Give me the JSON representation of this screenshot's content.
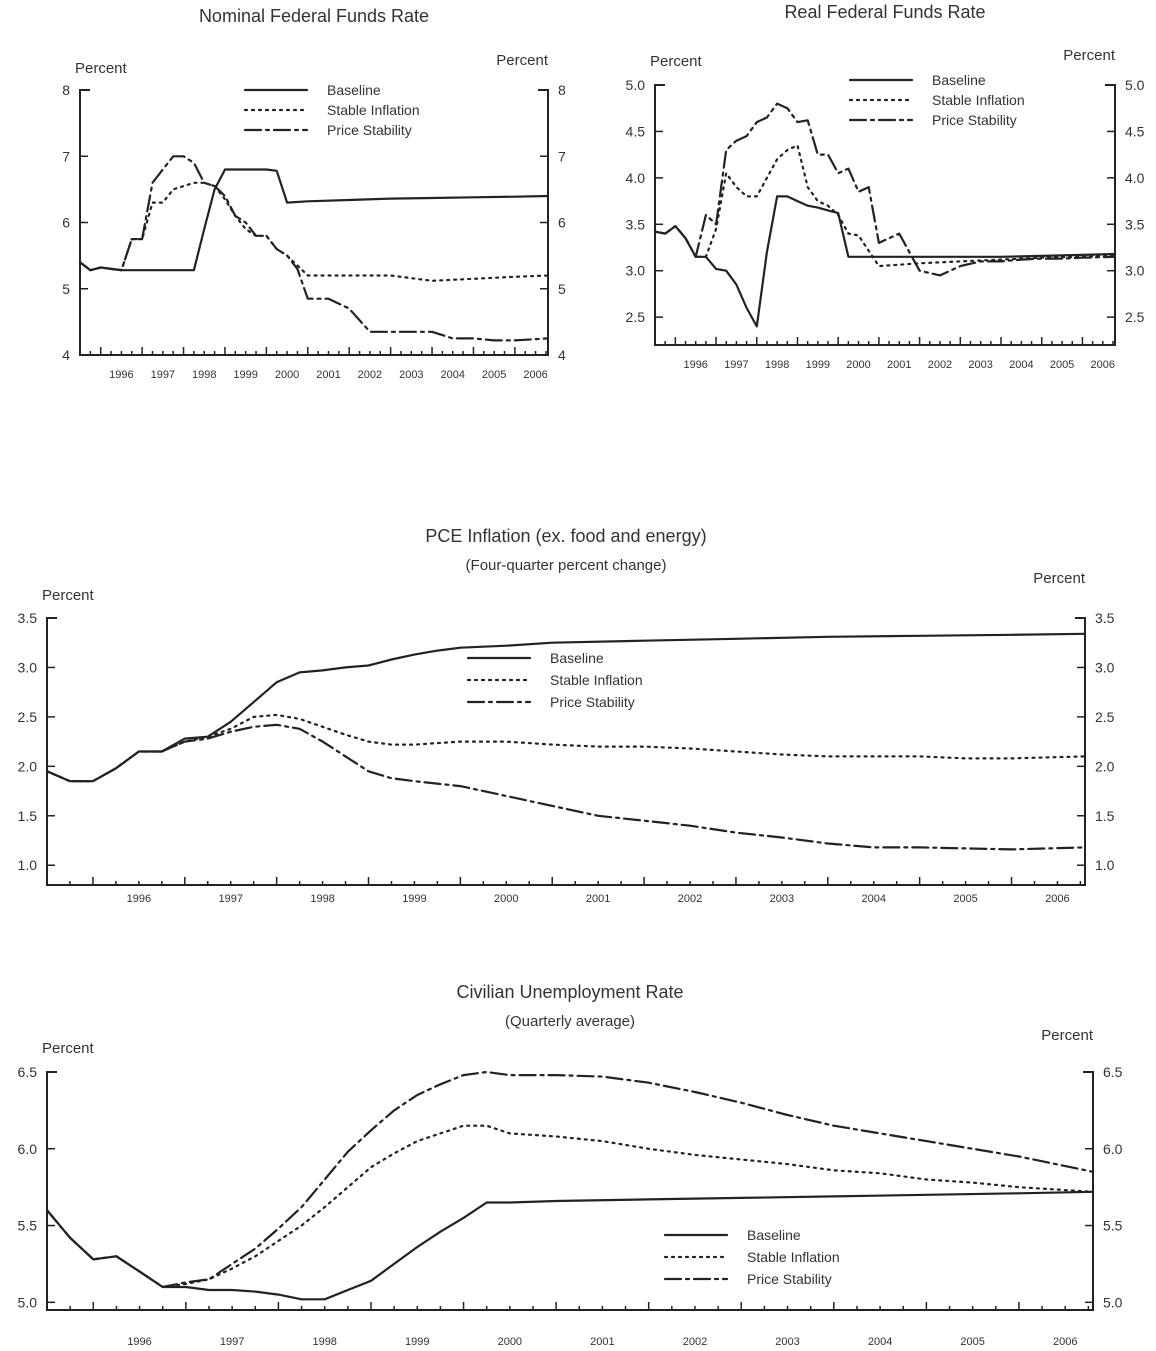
{
  "chart_data": [
    {
      "type": "line",
      "title": "Nominal Federal Funds Rate",
      "subtitle": "",
      "ylabel_left": "Percent",
      "ylabel_right": "Percent",
      "ylim": [
        4,
        8
      ],
      "yticks": [
        4,
        5,
        6,
        7,
        8
      ],
      "xlim": [
        1995.5,
        2006.8
      ],
      "xticks": [
        1996,
        1997,
        1998,
        1999,
        2000,
        2001,
        2002,
        2003,
        2004,
        2005,
        2006
      ],
      "legend": [
        "Baseline",
        "Stable Inflation",
        "Price Stability"
      ],
      "series": [
        {
          "name": "Baseline",
          "style": "solid",
          "x": [
            1995.5,
            1995.75,
            1996.0,
            1996.25,
            1996.5,
            1996.75,
            1997.0,
            1997.5,
            1998.0,
            1998.25,
            1998.5,
            1998.75,
            1999.0,
            1999.25,
            1999.5,
            1999.75,
            2000.0,
            2000.25,
            2000.5,
            2001.0,
            2002.0,
            2003.0,
            2004.0,
            2005.0,
            2006.0,
            2006.8
          ],
          "y": [
            5.4,
            5.28,
            5.32,
            5.3,
            5.28,
            5.28,
            5.28,
            5.28,
            5.28,
            5.28,
            5.9,
            6.5,
            6.8,
            6.8,
            6.8,
            6.8,
            6.8,
            6.78,
            6.3,
            6.32,
            6.34,
            6.36,
            6.37,
            6.38,
            6.39,
            6.4
          ]
        },
        {
          "name": "Stable Inflation",
          "style": "dotted",
          "x": [
            1995.5,
            1995.75,
            1996.0,
            1996.25,
            1996.5,
            1996.75,
            1997.0,
            1997.25,
            1997.5,
            1997.75,
            1998.0,
            1998.25,
            1998.5,
            1998.75,
            1999.0,
            1999.25,
            1999.5,
            1999.75,
            2000.0,
            2000.25,
            2000.5,
            2001.0,
            2002.0,
            2003.0,
            2004.0,
            2005.0,
            2006.0,
            2006.8
          ],
          "y": [
            5.4,
            5.28,
            5.32,
            5.3,
            5.28,
            5.75,
            5.75,
            6.3,
            6.3,
            6.5,
            6.55,
            6.6,
            6.6,
            6.55,
            6.35,
            6.1,
            5.9,
            5.8,
            5.8,
            5.6,
            5.5,
            5.2,
            5.2,
            5.2,
            5.12,
            5.15,
            5.18,
            5.2
          ]
        },
        {
          "name": "Price Stability",
          "style": "dashdot",
          "x": [
            1995.5,
            1995.75,
            1996.0,
            1996.25,
            1996.5,
            1996.75,
            1997.0,
            1997.25,
            1997.5,
            1997.75,
            1998.0,
            1998.25,
            1998.5,
            1998.75,
            1999.0,
            1999.25,
            1999.5,
            1999.75,
            2000.0,
            2000.25,
            2000.5,
            2000.75,
            2001.0,
            2001.5,
            2002.0,
            2002.5,
            2003.0,
            2003.5,
            2004.0,
            2004.5,
            2005.0,
            2005.5,
            2006.0,
            2006.8
          ],
          "y": [
            5.4,
            5.28,
            5.32,
            5.3,
            5.28,
            5.75,
            5.75,
            6.6,
            6.8,
            7.0,
            7.0,
            6.9,
            6.6,
            6.55,
            6.4,
            6.1,
            6.0,
            5.8,
            5.8,
            5.6,
            5.5,
            5.3,
            4.85,
            4.85,
            4.7,
            4.35,
            4.35,
            4.35,
            4.35,
            4.25,
            4.25,
            4.22,
            4.22,
            4.25
          ]
        }
      ]
    },
    {
      "type": "line",
      "title": "Real Federal Funds Rate",
      "subtitle": "",
      "ylabel_left": "Percent",
      "ylabel_right": "Percent",
      "ylim": [
        2.2,
        5.0
      ],
      "yticks": [
        2.5,
        3.0,
        3.5,
        4.0,
        4.5,
        5.0
      ],
      "xlim": [
        1995.5,
        2006.8
      ],
      "xticks": [
        1996,
        1997,
        1998,
        1999,
        2000,
        2001,
        2002,
        2003,
        2004,
        2005,
        2006
      ],
      "legend": [
        "Baseline",
        "Stable Inflation",
        "Price Stability"
      ],
      "series": [
        {
          "name": "Baseline",
          "style": "solid",
          "x": [
            1995.5,
            1995.75,
            1996.0,
            1996.25,
            1996.5,
            1996.75,
            1997.0,
            1997.25,
            1997.5,
            1997.75,
            1998.0,
            1998.25,
            1998.5,
            1998.75,
            1999.0,
            1999.25,
            1999.5,
            1999.75,
            2000.0,
            2000.25,
            2000.5,
            2001.0,
            2002.0,
            2003.0,
            2004.0,
            2005.0,
            2006.0,
            2006.8
          ],
          "y": [
            3.42,
            3.4,
            3.48,
            3.35,
            3.15,
            3.15,
            3.02,
            3.0,
            2.85,
            2.6,
            2.4,
            3.2,
            3.8,
            3.8,
            3.75,
            3.7,
            3.68,
            3.65,
            3.62,
            3.15,
            3.15,
            3.15,
            3.15,
            3.15,
            3.15,
            3.16,
            3.17,
            3.18
          ]
        },
        {
          "name": "Stable Inflation",
          "style": "dotted",
          "x": [
            1995.5,
            1995.75,
            1996.0,
            1996.25,
            1996.5,
            1996.75,
            1997.0,
            1997.25,
            1997.5,
            1997.75,
            1998.0,
            1998.25,
            1998.5,
            1998.75,
            1999.0,
            1999.25,
            1999.5,
            1999.75,
            2000.0,
            2000.25,
            2000.5,
            2001.0,
            2002.0,
            2003.0,
            2004.0,
            2005.0,
            2006.0,
            2006.8
          ],
          "y": [
            3.42,
            3.4,
            3.48,
            3.35,
            3.15,
            3.15,
            3.45,
            4.05,
            3.9,
            3.8,
            3.8,
            4.0,
            4.2,
            4.3,
            4.35,
            3.9,
            3.75,
            3.7,
            3.6,
            3.4,
            3.38,
            3.05,
            3.08,
            3.1,
            3.12,
            3.14,
            3.15,
            3.16
          ]
        },
        {
          "name": "Price Stability",
          "style": "dashdot",
          "x": [
            1995.5,
            1995.75,
            1996.0,
            1996.25,
            1996.5,
            1996.75,
            1997.0,
            1997.25,
            1997.5,
            1997.75,
            1998.0,
            1998.25,
            1998.5,
            1998.75,
            1999.0,
            1999.25,
            1999.5,
            1999.75,
            2000.0,
            2000.25,
            2000.5,
            2000.75,
            2001.0,
            2001.25,
            2001.5,
            2002.0,
            2002.5,
            2003.0,
            2003.5,
            2004.0,
            2004.5,
            2005.0,
            2005.5,
            2006.0,
            2006.8
          ],
          "y": [
            3.42,
            3.4,
            3.48,
            3.35,
            3.15,
            3.6,
            3.5,
            4.3,
            4.4,
            4.45,
            4.6,
            4.65,
            4.8,
            4.75,
            4.6,
            4.62,
            4.25,
            4.25,
            4.05,
            4.1,
            3.85,
            3.9,
            3.3,
            3.35,
            3.4,
            3.0,
            2.95,
            3.05,
            3.1,
            3.1,
            3.12,
            3.13,
            3.13,
            3.14,
            3.15
          ]
        }
      ]
    },
    {
      "type": "line",
      "title": "PCE Inflation (ex. food and energy)",
      "subtitle": "(Four-quarter percent change)",
      "ylabel_left": "Percent",
      "ylabel_right": "Percent",
      "ylim": [
        0.8,
        3.5
      ],
      "yticks": [
        1.0,
        1.5,
        2.0,
        2.5,
        3.0,
        3.5
      ],
      "xlim": [
        1995.5,
        2006.8
      ],
      "xticks": [
        1996,
        1997,
        1998,
        1999,
        2000,
        2001,
        2002,
        2003,
        2004,
        2005,
        2006
      ],
      "legend": [
        "Baseline",
        "Stable Inflation",
        "Price Stability"
      ],
      "series": [
        {
          "name": "Baseline",
          "style": "solid",
          "x": [
            1995.5,
            1995.75,
            1996.0,
            1996.25,
            1996.5,
            1996.75,
            1997.0,
            1997.25,
            1997.5,
            1997.75,
            1998.0,
            1998.25,
            1998.5,
            1998.75,
            1999.0,
            1999.25,
            1999.5,
            1999.75,
            2000.0,
            2000.5,
            2001.0,
            2002.0,
            2003.0,
            2004.0,
            2005.0,
            2006.0,
            2006.8
          ],
          "y": [
            1.95,
            1.85,
            1.85,
            1.98,
            2.15,
            2.15,
            2.28,
            2.3,
            2.45,
            2.65,
            2.85,
            2.95,
            2.97,
            3.0,
            3.02,
            3.08,
            3.13,
            3.17,
            3.2,
            3.22,
            3.25,
            3.27,
            3.29,
            3.31,
            3.32,
            3.33,
            3.34
          ]
        },
        {
          "name": "Stable Inflation",
          "style": "dotted",
          "x": [
            1995.5,
            1995.75,
            1996.0,
            1996.25,
            1996.5,
            1996.75,
            1997.0,
            1997.25,
            1997.5,
            1997.75,
            1998.0,
            1998.25,
            1998.5,
            1998.75,
            1999.0,
            1999.25,
            1999.5,
            2000.0,
            2000.5,
            2001.0,
            2001.5,
            2002.0,
            2002.5,
            2003.0,
            2003.5,
            2004.0,
            2004.5,
            2005.0,
            2005.5,
            2006.0,
            2006.8
          ],
          "y": [
            1.95,
            1.85,
            1.85,
            1.98,
            2.15,
            2.15,
            2.25,
            2.3,
            2.38,
            2.5,
            2.52,
            2.48,
            2.4,
            2.32,
            2.25,
            2.22,
            2.22,
            2.25,
            2.25,
            2.22,
            2.2,
            2.2,
            2.18,
            2.15,
            2.12,
            2.1,
            2.1,
            2.1,
            2.08,
            2.08,
            2.1
          ]
        },
        {
          "name": "Price Stability",
          "style": "dashdot",
          "x": [
            1995.5,
            1995.75,
            1996.0,
            1996.25,
            1996.5,
            1996.75,
            1997.0,
            1997.25,
            1997.5,
            1997.75,
            1998.0,
            1998.25,
            1998.5,
            1998.75,
            1999.0,
            1999.25,
            1999.5,
            2000.0,
            2000.5,
            2001.0,
            2001.5,
            2002.0,
            2002.5,
            2003.0,
            2003.5,
            2004.0,
            2004.5,
            2005.0,
            2005.5,
            2006.0,
            2006.8
          ],
          "y": [
            1.95,
            1.85,
            1.85,
            1.98,
            2.15,
            2.15,
            2.25,
            2.28,
            2.35,
            2.4,
            2.42,
            2.38,
            2.25,
            2.1,
            1.95,
            1.88,
            1.85,
            1.8,
            1.7,
            1.6,
            1.5,
            1.45,
            1.4,
            1.33,
            1.28,
            1.22,
            1.18,
            1.18,
            1.17,
            1.16,
            1.18
          ]
        }
      ]
    },
    {
      "type": "line",
      "title": "Civilian Unemployment Rate",
      "subtitle": "(Quarterly average)",
      "ylabel_left": "Percent",
      "ylabel_right": "Percent",
      "ylim": [
        4.95,
        6.5
      ],
      "yticks": [
        5.0,
        5.5,
        6.0,
        6.5
      ],
      "xlim": [
        1995.5,
        2006.8
      ],
      "xticks": [
        1996,
        1997,
        1998,
        1999,
        2000,
        2001,
        2002,
        2003,
        2004,
        2005,
        2006
      ],
      "legend": [
        "Baseline",
        "Stable Inflation",
        "Price Stability"
      ],
      "series": [
        {
          "name": "Baseline",
          "style": "solid",
          "x": [
            1995.5,
            1995.75,
            1996.0,
            1996.25,
            1996.5,
            1996.75,
            1997.0,
            1997.25,
            1997.5,
            1997.75,
            1998.0,
            1998.25,
            1998.5,
            1998.75,
            1999.0,
            1999.25,
            1999.5,
            1999.75,
            2000.0,
            2000.25,
            2000.5,
            2001.0,
            2002.0,
            2003.0,
            2004.0,
            2005.0,
            2006.0,
            2006.8
          ],
          "y": [
            5.6,
            5.42,
            5.28,
            5.3,
            5.2,
            5.1,
            5.1,
            5.08,
            5.08,
            5.07,
            5.05,
            5.02,
            5.02,
            5.08,
            5.14,
            5.25,
            5.36,
            5.46,
            5.55,
            5.65,
            5.65,
            5.66,
            5.67,
            5.68,
            5.69,
            5.7,
            5.71,
            5.72
          ]
        },
        {
          "name": "Stable Inflation",
          "style": "dotted",
          "x": [
            1995.5,
            1995.75,
            1996.0,
            1996.25,
            1996.5,
            1996.75,
            1997.0,
            1997.25,
            1997.5,
            1997.75,
            1998.0,
            1998.25,
            1998.5,
            1998.75,
            1999.0,
            1999.25,
            1999.5,
            1999.75,
            2000.0,
            2000.25,
            2000.5,
            2001.0,
            2001.5,
            2002.0,
            2002.5,
            2003.0,
            2003.5,
            2004.0,
            2004.5,
            2005.0,
            2005.5,
            2006.0,
            2006.8
          ],
          "y": [
            5.6,
            5.42,
            5.28,
            5.3,
            5.2,
            5.1,
            5.12,
            5.15,
            5.22,
            5.3,
            5.4,
            5.5,
            5.62,
            5.75,
            5.88,
            5.97,
            6.05,
            6.1,
            6.15,
            6.15,
            6.1,
            6.08,
            6.05,
            6.0,
            5.96,
            5.93,
            5.9,
            5.86,
            5.84,
            5.8,
            5.78,
            5.75,
            5.72
          ]
        },
        {
          "name": "Price Stability",
          "style": "dashdot",
          "x": [
            1995.5,
            1995.75,
            1996.0,
            1996.25,
            1996.5,
            1996.75,
            1997.0,
            1997.25,
            1997.5,
            1997.75,
            1998.0,
            1998.25,
            1998.5,
            1998.75,
            1999.0,
            1999.25,
            1999.5,
            1999.75,
            2000.0,
            2000.25,
            2000.5,
            2001.0,
            2001.5,
            2002.0,
            2002.5,
            2003.0,
            2003.5,
            2004.0,
            2004.5,
            2005.0,
            2005.5,
            2006.0,
            2006.8
          ],
          "y": [
            5.6,
            5.42,
            5.28,
            5.3,
            5.2,
            5.1,
            5.13,
            5.15,
            5.25,
            5.35,
            5.48,
            5.62,
            5.8,
            5.98,
            6.12,
            6.25,
            6.35,
            6.42,
            6.48,
            6.5,
            6.48,
            6.48,
            6.47,
            6.43,
            6.37,
            6.3,
            6.22,
            6.15,
            6.1,
            6.05,
            6.0,
            5.95,
            5.85
          ]
        }
      ]
    }
  ]
}
